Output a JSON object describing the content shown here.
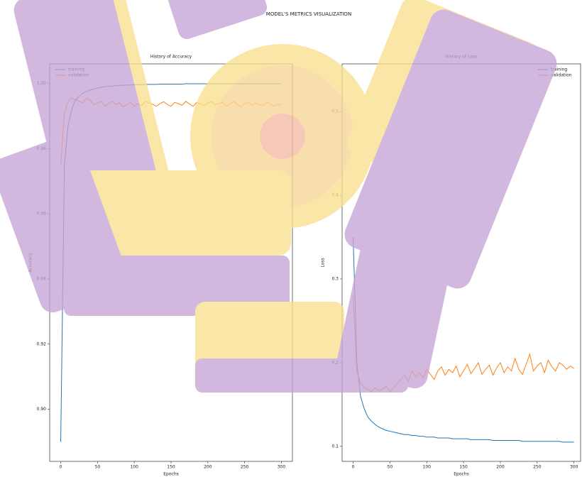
{
  "title": "MODEL'S METRICS VISUALIZATION",
  "chart_data": [
    {
      "type": "line",
      "title": "History of Accuracy",
      "xlabel": "Epochs",
      "ylabel": "Accuracy",
      "legend": "upper left",
      "x": [
        0,
        5,
        10,
        15,
        20,
        25,
        30,
        35,
        40,
        45,
        50,
        55,
        60,
        65,
        70,
        75,
        80,
        85,
        90,
        95,
        100,
        105,
        110,
        115,
        120,
        125,
        130,
        135,
        140,
        145,
        150,
        155,
        160,
        165,
        170,
        175,
        180,
        185,
        190,
        195,
        200,
        205,
        210,
        215,
        220,
        225,
        230,
        235,
        240,
        245,
        250,
        255,
        260,
        265,
        270,
        275,
        280,
        285,
        290,
        295,
        300
      ],
      "xlim": [
        -15,
        315
      ],
      "xticks": [
        0,
        50,
        100,
        150,
        200,
        250,
        300
      ],
      "ylim": [
        0.884,
        1.006
      ],
      "yticks": [
        {
          "value": 0.9,
          "label": "0.90"
        },
        {
          "value": 0.92,
          "label": "0.92"
        },
        {
          "value": 0.94,
          "label": "0.94"
        },
        {
          "value": 0.96,
          "label": "0.96"
        },
        {
          "value": 0.98,
          "label": "0.98"
        },
        {
          "value": 1.0,
          "label": "1.00"
        }
      ],
      "series": [
        {
          "name": "training",
          "color": "#1f77b4",
          "values": [
            0.89,
            0.975,
            0.987,
            0.992,
            0.995,
            0.996,
            0.997,
            0.9975,
            0.998,
            0.9983,
            0.9986,
            0.9988,
            0.999,
            0.9991,
            0.9992,
            0.9993,
            0.9994,
            0.9994,
            0.9995,
            0.9995,
            0.9996,
            0.9996,
            0.9996,
            0.9997,
            0.9997,
            0.9997,
            0.9997,
            0.9998,
            0.9998,
            0.9998,
            0.9998,
            0.9998,
            0.9998,
            0.9998,
            0.9999,
            0.9999,
            0.9999,
            0.9999,
            0.9999,
            0.9999,
            0.9999,
            0.9999,
            0.9999,
            0.9999,
            0.9999,
            0.9999,
            0.9999,
            0.9999,
            0.9999,
            0.9999,
            0.9999,
            0.9999,
            0.9999,
            0.9999,
            0.9999,
            0.9999,
            0.9999,
            0.9999,
            0.9999,
            0.9999,
            0.9999
          ]
        },
        {
          "name": "validation",
          "color": "#ff7f0e",
          "values": [
            0.975,
            0.991,
            0.9945,
            0.9955,
            0.995,
            0.9945,
            0.994,
            0.9955,
            0.9948,
            0.9935,
            0.994,
            0.9945,
            0.993,
            0.9938,
            0.9945,
            0.9935,
            0.994,
            0.9928,
            0.9935,
            0.9942,
            0.993,
            0.9938,
            0.9932,
            0.9945,
            0.994,
            0.9936,
            0.993,
            0.9938,
            0.9944,
            0.9935,
            0.993,
            0.9942,
            0.9938,
            0.9933,
            0.9945,
            0.9937,
            0.993,
            0.9942,
            0.9936,
            0.9932,
            0.994,
            0.9945,
            0.9934,
            0.9938,
            0.9942,
            0.993,
            0.9937,
            0.9944,
            0.9935,
            0.9928,
            0.9938,
            0.9942,
            0.9933,
            0.994,
            0.9936,
            0.9931,
            0.9943,
            0.9937,
            0.993,
            0.9936,
            0.9934
          ]
        }
      ]
    },
    {
      "type": "line",
      "title": "History of Loss",
      "xlabel": "Epochs",
      "ylabel": "Loss",
      "legend": "upper right",
      "x": [
        0,
        5,
        10,
        15,
        20,
        25,
        30,
        35,
        40,
        45,
        50,
        55,
        60,
        65,
        70,
        75,
        80,
        85,
        90,
        95,
        100,
        105,
        110,
        115,
        120,
        125,
        130,
        135,
        140,
        145,
        150,
        155,
        160,
        165,
        170,
        175,
        180,
        185,
        190,
        195,
        200,
        205,
        210,
        215,
        220,
        225,
        230,
        235,
        240,
        245,
        250,
        255,
        260,
        265,
        270,
        275,
        280,
        285,
        290,
        295,
        300
      ],
      "xlim": [
        -15,
        309
      ],
      "xticks": [
        0,
        50,
        100,
        150,
        200,
        250,
        300
      ],
      "ylim": [
        0.082,
        0.557
      ],
      "yticks": [
        0.1,
        0.2,
        0.3,
        0.4,
        0.5
      ],
      "series": [
        {
          "name": "training",
          "color": "#1f77b4",
          "values": [
            0.35,
            0.2,
            0.16,
            0.145,
            0.135,
            0.13,
            0.126,
            0.123,
            0.121,
            0.119,
            0.118,
            0.117,
            0.116,
            0.115,
            0.114,
            0.114,
            0.113,
            0.113,
            0.112,
            0.112,
            0.111,
            0.111,
            0.111,
            0.11,
            0.11,
            0.11,
            0.11,
            0.109,
            0.109,
            0.109,
            0.109,
            0.109,
            0.108,
            0.108,
            0.108,
            0.108,
            0.108,
            0.108,
            0.107,
            0.107,
            0.107,
            0.107,
            0.107,
            0.107,
            0.107,
            0.107,
            0.106,
            0.106,
            0.106,
            0.106,
            0.106,
            0.106,
            0.106,
            0.106,
            0.106,
            0.106,
            0.106,
            0.105,
            0.105,
            0.105,
            0.105
          ]
        },
        {
          "name": "validation",
          "color": "#ff7f0e",
          "values": [
            0.28,
            0.19,
            0.175,
            0.17,
            0.168,
            0.165,
            0.17,
            0.166,
            0.168,
            0.172,
            0.165,
            0.17,
            0.175,
            0.18,
            0.185,
            0.178,
            0.19,
            0.183,
            0.188,
            0.182,
            0.192,
            0.186,
            0.18,
            0.19,
            0.195,
            0.185,
            0.192,
            0.188,
            0.196,
            0.183,
            0.19,
            0.198,
            0.187,
            0.193,
            0.2,
            0.186,
            0.192,
            0.197,
            0.185,
            0.194,
            0.2,
            0.188,
            0.195,
            0.19,
            0.205,
            0.192,
            0.186,
            0.198,
            0.21,
            0.19,
            0.196,
            0.2,
            0.188,
            0.203,
            0.195,
            0.19,
            0.2,
            0.197,
            0.192,
            0.196,
            0.193
          ]
        }
      ]
    }
  ]
}
